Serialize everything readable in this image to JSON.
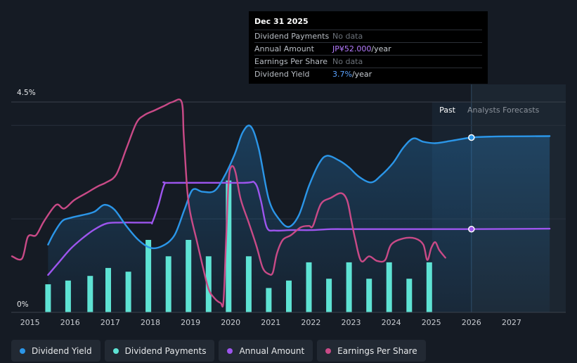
{
  "colors": {
    "background": "#151b24",
    "yield": "#2b96e8",
    "payments": "#5ee3d4",
    "annual": "#9d55ee",
    "eps": "#c94a87"
  },
  "tooltip": {
    "date": "Dec 31 2025",
    "rows": [
      {
        "label": "Dividend Payments",
        "value": "No data",
        "unit": ""
      },
      {
        "label": "Annual Amount",
        "value": "JP¥52.000",
        "unit": "/year"
      },
      {
        "label": "Earnings Per Share",
        "value": "No data",
        "unit": ""
      },
      {
        "label": "Dividend Yield",
        "value": "3.7%",
        "unit": "/year"
      }
    ]
  },
  "chart_data": {
    "type": "line",
    "x_range": [
      2014.55,
      2028.0
    ],
    "ylim": [
      0,
      4.5
    ],
    "y_tick_labels": [
      "4.5%",
      "0%"
    ],
    "forecast_start": 2026.0,
    "past_label": "Past",
    "forecast_label": "Analysts Forecasts",
    "x_ticks": [
      2015,
      2016,
      2017,
      2018,
      2019,
      2020,
      2021,
      2022,
      2023,
      2024,
      2025,
      2026,
      2027
    ],
    "x_tick_labels": [
      "2015",
      "2016",
      "2017",
      "2018",
      "2019",
      "2020",
      "2021",
      "2022",
      "2023",
      "2024",
      "2025",
      "2026",
      "2027"
    ],
    "series": [
      {
        "name": "Dividend Yield",
        "key": "yield",
        "unit": "%",
        "points": [
          [
            2015.45,
            1.45
          ],
          [
            2015.6,
            1.7
          ],
          [
            2015.8,
            1.95
          ],
          [
            2016.0,
            2.02
          ],
          [
            2016.3,
            2.08
          ],
          [
            2016.6,
            2.15
          ],
          [
            2016.85,
            2.3
          ],
          [
            2017.1,
            2.2
          ],
          [
            2017.4,
            1.85
          ],
          [
            2017.7,
            1.55
          ],
          [
            2018.0,
            1.38
          ],
          [
            2018.3,
            1.42
          ],
          [
            2018.6,
            1.65
          ],
          [
            2018.85,
            2.2
          ],
          [
            2019.05,
            2.62
          ],
          [
            2019.3,
            2.58
          ],
          [
            2019.6,
            2.6
          ],
          [
            2019.85,
            2.92
          ],
          [
            2020.1,
            3.38
          ],
          [
            2020.3,
            3.85
          ],
          [
            2020.5,
            3.98
          ],
          [
            2020.7,
            3.5
          ],
          [
            2020.95,
            2.42
          ],
          [
            2021.2,
            2.0
          ],
          [
            2021.45,
            1.83
          ],
          [
            2021.7,
            2.08
          ],
          [
            2021.95,
            2.7
          ],
          [
            2022.2,
            3.18
          ],
          [
            2022.4,
            3.35
          ],
          [
            2022.7,
            3.25
          ],
          [
            2022.95,
            3.1
          ],
          [
            2023.2,
            2.9
          ],
          [
            2023.5,
            2.78
          ],
          [
            2023.75,
            2.93
          ],
          [
            2024.05,
            3.2
          ],
          [
            2024.3,
            3.52
          ],
          [
            2024.55,
            3.72
          ],
          [
            2024.8,
            3.65
          ],
          [
            2025.1,
            3.62
          ],
          [
            2025.5,
            3.67
          ],
          [
            2026.0,
            3.74
          ],
          [
            2026.5,
            3.76
          ],
          [
            2027.0,
            3.765
          ],
          [
            2027.95,
            3.77
          ]
        ]
      },
      {
        "name": "Annual Amount",
        "key": "annual",
        "unit": "JP¥",
        "points": [
          [
            2015.45,
            0.8
          ],
          [
            2015.7,
            1.05
          ],
          [
            2016.0,
            1.35
          ],
          [
            2016.3,
            1.58
          ],
          [
            2016.6,
            1.77
          ],
          [
            2016.9,
            1.9
          ],
          [
            2017.2,
            1.92
          ],
          [
            2017.6,
            1.92
          ],
          [
            2018.0,
            1.92
          ],
          [
            2018.05,
            1.93
          ],
          [
            2018.2,
            2.3
          ],
          [
            2018.35,
            2.74
          ],
          [
            2018.5,
            2.77
          ],
          [
            2020.3,
            2.77
          ],
          [
            2020.6,
            2.77
          ],
          [
            2020.75,
            2.4
          ],
          [
            2020.9,
            1.82
          ],
          [
            2021.1,
            1.75
          ],
          [
            2021.5,
            1.76
          ],
          [
            2022.0,
            1.76
          ],
          [
            2022.5,
            1.78
          ],
          [
            2023.0,
            1.78
          ],
          [
            2024.0,
            1.78
          ],
          [
            2025.0,
            1.78
          ],
          [
            2026.0,
            1.78
          ],
          [
            2027.95,
            1.79
          ]
        ]
      },
      {
        "name": "Earnings Per Share",
        "key": "eps",
        "unit": "",
        "points": [
          [
            2014.55,
            1.2
          ],
          [
            2014.8,
            1.15
          ],
          [
            2014.95,
            1.62
          ],
          [
            2015.15,
            1.65
          ],
          [
            2015.35,
            1.95
          ],
          [
            2015.65,
            2.3
          ],
          [
            2015.85,
            2.22
          ],
          [
            2016.1,
            2.4
          ],
          [
            2016.4,
            2.55
          ],
          [
            2016.7,
            2.7
          ],
          [
            2016.9,
            2.78
          ],
          [
            2017.15,
            2.95
          ],
          [
            2017.4,
            3.5
          ],
          [
            2017.65,
            4.05
          ],
          [
            2017.85,
            4.22
          ],
          [
            2018.1,
            4.32
          ],
          [
            2018.35,
            4.42
          ],
          [
            2018.55,
            4.5
          ],
          [
            2018.78,
            4.5
          ],
          [
            2018.83,
            3.8
          ],
          [
            2018.92,
            2.6
          ],
          [
            2019.0,
            2.1
          ],
          [
            2019.15,
            1.55
          ],
          [
            2019.3,
            1.0
          ],
          [
            2019.45,
            0.5
          ],
          [
            2019.6,
            0.3
          ],
          [
            2019.75,
            0.2
          ],
          [
            2019.82,
            0.22
          ],
          [
            2019.88,
            1.4
          ],
          [
            2019.95,
            2.8
          ],
          [
            2020.02,
            3.12
          ],
          [
            2020.12,
            3.0
          ],
          [
            2020.25,
            2.42
          ],
          [
            2020.45,
            1.92
          ],
          [
            2020.65,
            1.4
          ],
          [
            2020.8,
            0.95
          ],
          [
            2020.95,
            0.82
          ],
          [
            2021.05,
            0.85
          ],
          [
            2021.15,
            1.25
          ],
          [
            2021.3,
            1.55
          ],
          [
            2021.5,
            1.65
          ],
          [
            2021.75,
            1.82
          ],
          [
            2021.95,
            1.85
          ],
          [
            2022.05,
            1.85
          ],
          [
            2022.25,
            2.32
          ],
          [
            2022.5,
            2.45
          ],
          [
            2022.75,
            2.55
          ],
          [
            2022.9,
            2.4
          ],
          [
            2023.0,
            2.0
          ],
          [
            2023.1,
            1.58
          ],
          [
            2023.25,
            1.1
          ],
          [
            2023.45,
            1.2
          ],
          [
            2023.65,
            1.1
          ],
          [
            2023.85,
            1.12
          ],
          [
            2024.0,
            1.45
          ],
          [
            2024.3,
            1.58
          ],
          [
            2024.6,
            1.58
          ],
          [
            2024.8,
            1.45
          ],
          [
            2024.9,
            1.12
          ],
          [
            2025.0,
            1.38
          ],
          [
            2025.1,
            1.5
          ],
          [
            2025.2,
            1.33
          ],
          [
            2025.35,
            1.17
          ]
        ]
      }
    ],
    "bars": {
      "name": "Dividend Payments",
      "key": "payments",
      "values": [
        [
          2015.45,
          0.6
        ],
        [
          2015.95,
          0.68
        ],
        [
          2016.5,
          0.78
        ],
        [
          2016.95,
          0.95
        ],
        [
          2017.45,
          0.87
        ],
        [
          2017.95,
          1.55
        ],
        [
          2018.45,
          1.2
        ],
        [
          2018.95,
          1.55
        ],
        [
          2019.45,
          1.2
        ],
        [
          2019.95,
          2.82
        ],
        [
          2020.45,
          1.2
        ],
        [
          2020.95,
          0.52
        ],
        [
          2021.45,
          0.68
        ],
        [
          2021.95,
          1.07
        ],
        [
          2022.45,
          0.72
        ],
        [
          2022.95,
          1.07
        ],
        [
          2023.45,
          0.72
        ],
        [
          2023.95,
          1.07
        ],
        [
          2024.45,
          0.72
        ],
        [
          2024.95,
          1.07
        ]
      ]
    },
    "markers": [
      {
        "series": "yield",
        "x": 2026.0,
        "y": 3.74
      },
      {
        "series": "annual",
        "x": 2026.0,
        "y": 1.78
      }
    ]
  },
  "legend": [
    {
      "label": "Dividend Yield",
      "key": "yield"
    },
    {
      "label": "Dividend Payments",
      "key": "payments"
    },
    {
      "label": "Annual Amount",
      "key": "annual"
    },
    {
      "label": "Earnings Per Share",
      "key": "eps"
    }
  ]
}
